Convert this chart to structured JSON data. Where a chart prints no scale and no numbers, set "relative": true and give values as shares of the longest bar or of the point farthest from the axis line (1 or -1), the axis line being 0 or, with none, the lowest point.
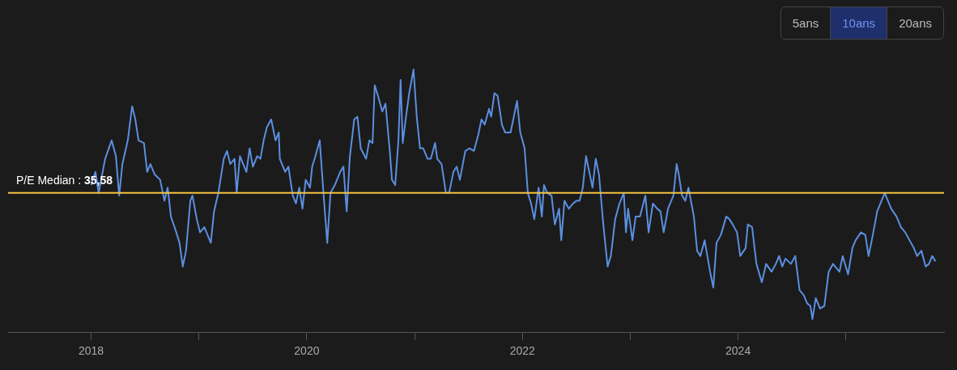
{
  "chart_data": {
    "type": "line",
    "relative": true,
    "annotations": [
      {
        "text": "P/E Median : 35,58",
        "y": 0.53
      },
      "5ans",
      "10ans",
      "20ans"
    ],
    "xlim": [
      2017.23,
      2025.91
    ],
    "xticks": [
      2018,
      {
        "value": 2019,
        "label": null
      },
      2020,
      {
        "value": 2021,
        "label": null
      },
      2022,
      {
        "value": 2023,
        "label": null
      },
      2024,
      {
        "value": 2025,
        "label": null
      }
    ],
    "grid": false,
    "legend": false,
    "marker": "none",
    "line_style": "solid",
    "ref_lines": [
      {
        "axis": "y",
        "value": 0.53,
        "color": "#f5c342"
      }
    ],
    "series": [
      {
        "color": "#5b8fe0",
        "x": [
          2018.0,
          2018.04,
          2018.07,
          2018.13,
          2018.19,
          2018.23,
          2018.26,
          2018.29,
          2018.34,
          2018.38,
          2018.41,
          2018.44,
          2018.49,
          2018.52,
          2018.55,
          2018.59,
          2018.64,
          2018.68,
          2018.71,
          2018.74,
          2018.79,
          2018.82,
          2018.85,
          2018.88,
          2018.92,
          2018.94,
          2018.98,
          2019.01,
          2019.05,
          2019.08,
          2019.11,
          2019.14,
          2019.18,
          2019.23,
          2019.26,
          2019.29,
          2019.33,
          2019.35,
          2019.38,
          2019.44,
          2019.47,
          2019.5,
          2019.54,
          2019.57,
          2019.6,
          2019.63,
          2019.67,
          2019.71,
          2019.74,
          2019.75,
          2019.8,
          2019.83,
          2019.87,
          2019.9,
          2019.93,
          2019.96,
          2019.99,
          2020.03,
          2020.05,
          2020.08,
          2020.12,
          2020.16,
          2020.19,
          2020.22,
          2020.26,
          2020.31,
          2020.34,
          2020.37,
          2020.4,
          2020.44,
          2020.47,
          2020.5,
          2020.55,
          2020.58,
          2020.61,
          2020.63,
          2020.66,
          2020.7,
          2020.73,
          2020.77,
          2020.79,
          2020.82,
          2020.85,
          2020.87,
          2020.89,
          2020.92,
          2020.95,
          2020.99,
          2021.02,
          2021.05,
          2021.08,
          2021.12,
          2021.15,
          2021.19,
          2021.21,
          2021.25,
          2021.29,
          2021.32,
          2021.36,
          2021.39,
          2021.42,
          2021.47,
          2021.51,
          2021.55,
          2021.59,
          2021.62,
          2021.65,
          2021.69,
          2021.71,
          2021.74,
          2021.77,
          2021.81,
          2021.84,
          2021.89,
          2021.92,
          2021.95,
          2021.98,
          2022.02,
          2022.05,
          2022.08,
          2022.11,
          2022.15,
          2022.18,
          2022.2,
          2022.23,
          2022.27,
          2022.3,
          2022.34,
          2022.36,
          2022.39,
          2022.43,
          2022.47,
          2022.5,
          2022.53,
          2022.56,
          2022.59,
          2022.62,
          2022.65,
          2022.68,
          2022.71,
          2022.75,
          2022.79,
          2022.82,
          2022.86,
          2022.9,
          2022.94,
          2022.96,
          2022.98,
          2023.02,
          2023.05,
          2023.09,
          2023.14,
          2023.17,
          2023.21,
          2023.25,
          2023.28,
          2023.31,
          2023.35,
          2023.4,
          2023.43,
          2023.45,
          2023.48,
          2023.51,
          2023.54,
          2023.59,
          2023.62,
          2023.65,
          2023.69,
          2023.74,
          2023.77,
          2023.8,
          2023.84,
          2023.89,
          2023.92,
          2023.95,
          2023.99,
          2024.02,
          2024.07,
          2024.09,
          2024.13,
          2024.17,
          2024.22,
          2024.26,
          2024.31,
          2024.35,
          2024.38,
          2024.41,
          2024.44,
          2024.49,
          2024.53,
          2024.57,
          2024.61,
          2024.64,
          2024.67,
          2024.69,
          2024.72,
          2024.76,
          2024.8,
          2024.84,
          2024.88,
          2024.94,
          2024.97,
          2025.02,
          2025.06,
          2025.09,
          2025.14,
          2025.18,
          2025.21,
          2025.24,
          2025.29,
          2025.33,
          2025.36,
          2025.39,
          2025.42,
          2025.47,
          2025.51,
          2025.55,
          2025.59,
          2025.63,
          2025.66,
          2025.7,
          2025.74,
          2025.77,
          2025.8,
          2025.83
        ],
        "values": [
          0.56,
          0.61,
          0.53,
          0.66,
          0.73,
          0.67,
          0.52,
          0.64,
          0.73,
          0.86,
          0.81,
          0.73,
          0.72,
          0.61,
          0.64,
          0.6,
          0.58,
          0.5,
          0.55,
          0.44,
          0.38,
          0.34,
          0.25,
          0.31,
          0.5,
          0.52,
          0.43,
          0.38,
          0.4,
          0.37,
          0.34,
          0.46,
          0.53,
          0.66,
          0.69,
          0.64,
          0.66,
          0.53,
          0.67,
          0.61,
          0.7,
          0.63,
          0.67,
          0.66,
          0.73,
          0.78,
          0.81,
          0.73,
          0.76,
          0.66,
          0.61,
          0.63,
          0.52,
          0.49,
          0.55,
          0.47,
          0.58,
          0.55,
          0.63,
          0.67,
          0.73,
          0.5,
          0.34,
          0.53,
          0.56,
          0.61,
          0.63,
          0.46,
          0.67,
          0.81,
          0.82,
          0.7,
          0.66,
          0.73,
          0.72,
          0.94,
          0.9,
          0.84,
          0.87,
          0.69,
          0.58,
          0.56,
          0.73,
          0.96,
          0.72,
          0.82,
          0.91,
          1.0,
          0.82,
          0.7,
          0.7,
          0.66,
          0.66,
          0.72,
          0.66,
          0.64,
          0.53,
          0.53,
          0.61,
          0.63,
          0.58,
          0.69,
          0.7,
          0.69,
          0.75,
          0.81,
          0.79,
          0.85,
          0.82,
          0.91,
          0.9,
          0.79,
          0.76,
          0.76,
          0.82,
          0.88,
          0.76,
          0.7,
          0.53,
          0.49,
          0.43,
          0.55,
          0.44,
          0.56,
          0.53,
          0.52,
          0.41,
          0.47,
          0.35,
          0.5,
          0.47,
          0.49,
          0.5,
          0.5,
          0.55,
          0.67,
          0.61,
          0.55,
          0.66,
          0.6,
          0.41,
          0.25,
          0.29,
          0.43,
          0.49,
          0.53,
          0.38,
          0.47,
          0.35,
          0.44,
          0.44,
          0.52,
          0.38,
          0.49,
          0.47,
          0.46,
          0.38,
          0.47,
          0.52,
          0.64,
          0.6,
          0.52,
          0.5,
          0.55,
          0.44,
          0.31,
          0.29,
          0.35,
          0.23,
          0.17,
          0.34,
          0.37,
          0.44,
          0.43,
          0.41,
          0.38,
          0.29,
          0.32,
          0.41,
          0.4,
          0.26,
          0.19,
          0.26,
          0.23,
          0.26,
          0.29,
          0.25,
          0.28,
          0.26,
          0.29,
          0.16,
          0.14,
          0.11,
          0.1,
          0.05,
          0.13,
          0.09,
          0.1,
          0.23,
          0.26,
          0.23,
          0.29,
          0.22,
          0.32,
          0.35,
          0.38,
          0.37,
          0.29,
          0.35,
          0.46,
          0.5,
          0.53,
          0.5,
          0.47,
          0.44,
          0.4,
          0.38,
          0.35,
          0.32,
          0.29,
          0.31,
          0.25,
          0.26,
          0.29,
          0.27
        ]
      }
    ]
  }
}
